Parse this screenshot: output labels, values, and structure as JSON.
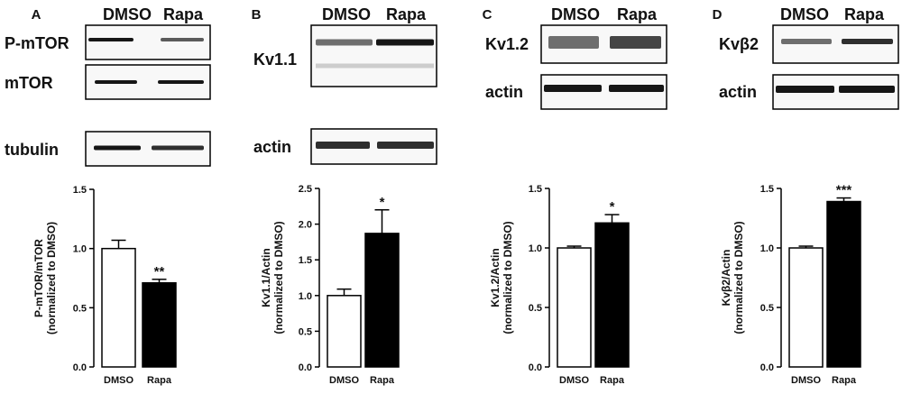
{
  "panels": [
    {
      "letter": "A",
      "lanes": [
        "DMSO",
        "Rapa"
      ],
      "blots": [
        {
          "label": "P-mTOR",
          "intensity": [
            1.0,
            0.7
          ]
        },
        {
          "label": "mTOR",
          "intensity": [
            1.0,
            1.0
          ]
        },
        {
          "label": "tubulin",
          "intensity": [
            1.0,
            0.9
          ]
        }
      ]
    },
    {
      "letter": "B",
      "lanes": [
        "DMSO",
        "Rapa"
      ],
      "blots": [
        {
          "label": "Kv1.1",
          "intensity": [
            0.6,
            1.0
          ]
        },
        {
          "label": "actin",
          "intensity": [
            0.9,
            0.9
          ]
        }
      ]
    },
    {
      "letter": "C",
      "lanes": [
        "DMSO",
        "Rapa"
      ],
      "blots": [
        {
          "label": "Kv1.2",
          "intensity": [
            0.6,
            0.8
          ]
        },
        {
          "label": "actin",
          "intensity": [
            1.0,
            1.0
          ]
        }
      ]
    },
    {
      "letter": "D",
      "lanes": [
        "DMSO",
        "Rapa"
      ],
      "blots": [
        {
          "label": "Kvβ2",
          "intensity": [
            0.6,
            0.9
          ]
        },
        {
          "label": "actin",
          "intensity": [
            1.0,
            1.0
          ]
        }
      ]
    }
  ],
  "chart_data": [
    {
      "type": "bar",
      "panel": "A",
      "categories": [
        "DMSO",
        "Rapa"
      ],
      "values": [
        1.0,
        0.71
      ],
      "errors": [
        0.07,
        0.03
      ],
      "colors": [
        "#ffffff",
        "#000000"
      ],
      "significance": [
        "",
        "**"
      ],
      "ylabel_lines": [
        "P-mTOR/mTOR",
        "(normalized to DMSO)"
      ],
      "ylim": [
        0,
        1.5
      ],
      "yticks": [
        "0.0",
        "0.5",
        "1.0",
        "1.5"
      ],
      "ytick_values": [
        0,
        0.5,
        1.0,
        1.5
      ]
    },
    {
      "type": "bar",
      "panel": "B",
      "categories": [
        "DMSO",
        "Rapa"
      ],
      "values": [
        1.0,
        1.87
      ],
      "errors": [
        0.09,
        0.33
      ],
      "colors": [
        "#ffffff",
        "#000000"
      ],
      "significance": [
        "",
        "*"
      ],
      "ylabel_lines": [
        "Kv1.1/Actin",
        "(normalized to DMSO)"
      ],
      "ylim": [
        0,
        2.5
      ],
      "yticks": [
        "0.0",
        "0.5",
        "1.0",
        "1.5",
        "2.0",
        "2.5"
      ],
      "ytick_values": [
        0,
        0.5,
        1.0,
        1.5,
        2.0,
        2.5
      ]
    },
    {
      "type": "bar",
      "panel": "C",
      "categories": [
        "DMSO",
        "Rapa"
      ],
      "values": [
        1.0,
        1.21
      ],
      "errors": [
        0.015,
        0.07
      ],
      "colors": [
        "#ffffff",
        "#000000"
      ],
      "significance": [
        "",
        "*"
      ],
      "ylabel_lines": [
        "Kv1.2/Actin",
        "(normalized to DMSO)"
      ],
      "ylim": [
        0,
        1.5
      ],
      "yticks": [
        "0.0",
        "0.5",
        "1.0",
        "1.5"
      ],
      "ytick_values": [
        0,
        0.5,
        1.0,
        1.5
      ]
    },
    {
      "type": "bar",
      "panel": "D",
      "categories": [
        "DMSO",
        "Rapa"
      ],
      "values": [
        1.0,
        1.39
      ],
      "errors": [
        0.015,
        0.03
      ],
      "colors": [
        "#ffffff",
        "#000000"
      ],
      "significance": [
        "",
        "***"
      ],
      "ylabel_lines": [
        "Kvβ2/Actin",
        "(normalized to DMSO)"
      ],
      "ylim": [
        0,
        1.5
      ],
      "yticks": [
        "0.0",
        "0.5",
        "1.0",
        "1.5"
      ],
      "ytick_values": [
        0,
        0.5,
        1.0,
        1.5
      ]
    }
  ]
}
